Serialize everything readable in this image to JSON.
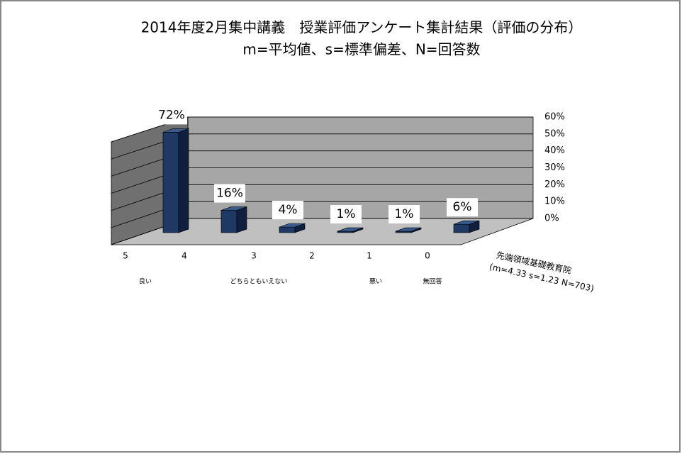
{
  "chart_data": {
    "type": "bar3d",
    "title": "2014年度2月集中講義　授業評価アンケート集計結果（評価の分布）",
    "subtitle": "m=平均値、s=標準偏差、N=回答数",
    "categories": [
      "5",
      "4",
      "3",
      "2",
      "1",
      "0"
    ],
    "category_notes": [
      "良い",
      null,
      "どちらともいえない",
      null,
      "悪い",
      "無回答"
    ],
    "series": [
      {
        "name": "先端領域基礎教育院",
        "color": "#1f3864",
        "values": [
          72,
          16,
          4,
          1,
          1,
          6
        ],
        "value_labels": [
          "72%",
          "16%",
          "4%",
          "1%",
          "1%",
          "6%"
        ]
      }
    ],
    "annotation": "(m=4.33 s=1.23 N=703)",
    "ylim": [
      0,
      60
    ],
    "yticks": [
      {
        "value": 0,
        "label": "0%"
      },
      {
        "value": 10,
        "label": "10%"
      },
      {
        "value": 20,
        "label": "20%"
      },
      {
        "value": 30,
        "label": "30%"
      },
      {
        "value": 40,
        "label": "40%"
      },
      {
        "value": 50,
        "label": "50%"
      },
      {
        "value": 60,
        "label": "60%"
      }
    ],
    "grid": true
  }
}
